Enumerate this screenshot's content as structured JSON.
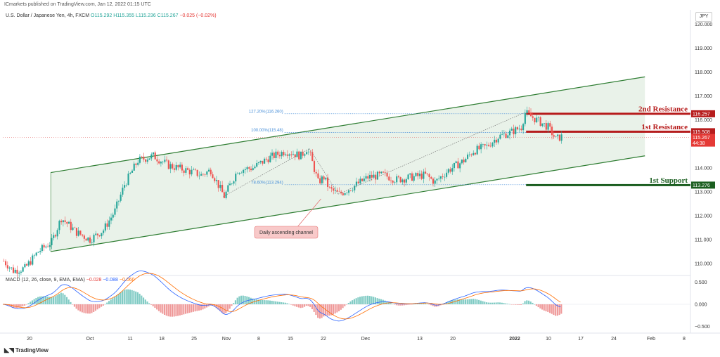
{
  "header": {
    "published": "ICmarkets published on TradingView.com, Jan 12, 2022 01:15 UTC",
    "symbol": "U.S. Dollar / Japanese Yen, 4h, FXCM",
    "ohlc_open": "O115.292",
    "ohlc_high": "H115.355",
    "ohlc_low": "L115.236",
    "ohlc_close": "C115.267",
    "change": "−0.025 (−0.02%)",
    "currency": "JPY"
  },
  "macd_header": {
    "label": "MACD (12, 26, close, 9, EMA, EMA)",
    "v1": "−0.028",
    "v2": "−0.088",
    "v3": "−0.060"
  },
  "footer": {
    "logo_text": "TradingView"
  },
  "colors": {
    "resistance": "#b71c1c",
    "support": "#1b5e20",
    "channel_line": "#2e7d32",
    "channel_fill": "#e3efe3",
    "up_candle": "#26a69a",
    "down_candle": "#ef5350",
    "macd_line": "#2962ff",
    "signal_line": "#ff6d00",
    "fib_line": "#4a90d9"
  },
  "chart_data": {
    "type": "candlestick",
    "timeframe": "4h",
    "price_axis": {
      "ticks": [
        "120.000",
        "119.000",
        "118.000",
        "117.000",
        "116.000",
        "115.000",
        "114.000",
        "113.000",
        "112.000",
        "111.000",
        "110.000"
      ],
      "range": [
        109.5,
        120.6
      ]
    },
    "time_axis": {
      "ticks": [
        "20",
        "Oct",
        "11",
        "18",
        "25",
        "Nov",
        "8",
        "15",
        "22",
        "Dec",
        "13",
        "20",
        "2022",
        "10",
        "17",
        "24",
        "Feb",
        "8"
      ]
    },
    "price_path": [
      [
        0,
        110.1
      ],
      [
        5,
        109.7
      ],
      [
        11,
        109.8
      ],
      [
        18,
        110.5
      ],
      [
        25,
        110.9
      ],
      [
        30,
        111.9
      ],
      [
        38,
        111.3
      ],
      [
        45,
        111.0
      ],
      [
        52,
        111.4
      ],
      [
        58,
        112.2
      ],
      [
        63,
        113.3
      ],
      [
        70,
        114.3
      ],
      [
        78,
        114.5
      ],
      [
        86,
        114.1
      ],
      [
        95,
        113.9
      ],
      [
        103,
        113.7
      ],
      [
        108,
        113.9
      ],
      [
        115,
        112.8
      ],
      [
        122,
        113.9
      ],
      [
        130,
        114.0
      ],
      [
        138,
        114.4
      ],
      [
        147,
        114.7
      ],
      [
        155,
        114.5
      ],
      [
        158,
        114.8
      ],
      [
        160,
        114.5
      ],
      [
        164,
        113.4
      ],
      [
        167,
        113.6
      ],
      [
        170,
        113.1
      ],
      [
        175,
        112.9
      ],
      [
        182,
        113.2
      ],
      [
        190,
        113.6
      ],
      [
        198,
        113.7
      ],
      [
        205,
        113.5
      ],
      [
        212,
        113.6
      ],
      [
        220,
        113.7
      ],
      [
        225,
        113.4
      ],
      [
        232,
        113.9
      ],
      [
        240,
        114.3
      ],
      [
        245,
        114.7
      ],
      [
        252,
        114.9
      ],
      [
        258,
        115.3
      ],
      [
        265,
        115.5
      ],
      [
        270,
        115.7
      ],
      [
        272,
        116.3
      ],
      [
        278,
        116.0
      ],
      [
        284,
        115.7
      ],
      [
        288,
        115.2
      ],
      [
        291,
        115.3
      ]
    ],
    "last_price": "115.267",
    "countdown": "44:38",
    "levels": [
      {
        "name": "2nd Resistance",
        "value": 116.257,
        "label": "116.257"
      },
      {
        "name": "1st Resistance",
        "value": 115.508,
        "label": "115.508"
      },
      {
        "name": "1st Support",
        "value": 113.276,
        "label": "113.276"
      }
    ],
    "channel": {
      "name": "Daily ascending channel",
      "upper": [
        [
          25,
          113.8
        ],
        [
          335,
          117.8
        ]
      ],
      "lower": [
        [
          25,
          110.5
        ],
        [
          335,
          114.5
        ]
      ]
    },
    "fib_labels": [
      {
        "text": "127.20%(116.260)",
        "value": 116.26
      },
      {
        "text": "100.00%(115.48)",
        "value": 115.48
      },
      {
        "text": "78.60%(113.294)",
        "value": 113.294
      }
    ],
    "annotation": "Daily ascending channel",
    "macd": {
      "ticks": [
        "0.500",
        "0.000",
        "−0.500"
      ],
      "range": [
        -0.65,
        0.65
      ],
      "macd_line": "−0.028",
      "signal_line": "−0.088",
      "histogram": "−0.060"
    }
  }
}
